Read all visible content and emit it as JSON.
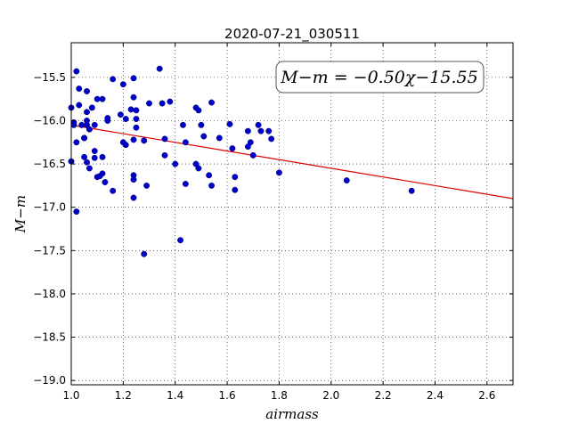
{
  "chart_data": {
    "type": "scatter",
    "title": "2020-07-21_030511",
    "xlabel": "airmass",
    "ylabel": "M−m",
    "annotation": "M−m = −0.50χ−15.55",
    "xlim": [
      1.0,
      2.7
    ],
    "ylim": [
      -19.05,
      -15.1
    ],
    "x_ticks": [
      1.0,
      1.2,
      1.4,
      1.6,
      1.8,
      2.0,
      2.2,
      2.4,
      2.6
    ],
    "x_tick_labels": [
      "1.0",
      "1.2",
      "1.4",
      "1.6",
      "1.8",
      "2.0",
      "2.2",
      "2.4",
      "2.6"
    ],
    "y_ticks": [
      -15.5,
      -16.0,
      -16.5,
      -17.0,
      -17.5,
      -18.0,
      -18.5,
      -19.0
    ],
    "y_tick_labels": [
      "−15.5",
      "−16.0",
      "−16.5",
      "−17.0",
      "−17.5",
      "−18.0",
      "−18.5",
      "−19.0"
    ],
    "grid": true,
    "point_color": "#0000cc",
    "fit_color": "#dd0000",
    "fit": {
      "slope": -0.5,
      "intercept": -15.55
    },
    "points": [
      [
        1.0,
        -15.85
      ],
      [
        1.0,
        -16.47
      ],
      [
        1.01,
        -16.05
      ],
      [
        1.01,
        -16.02
      ],
      [
        1.02,
        -15.43
      ],
      [
        1.02,
        -16.25
      ],
      [
        1.02,
        -17.05
      ],
      [
        1.03,
        -15.63
      ],
      [
        1.03,
        -15.82
      ],
      [
        1.04,
        -16.05
      ],
      [
        1.05,
        -16.2
      ],
      [
        1.05,
        -16.42
      ],
      [
        1.05,
        -16.2
      ],
      [
        1.06,
        -15.66
      ],
      [
        1.06,
        -15.9
      ],
      [
        1.06,
        -16.0
      ],
      [
        1.06,
        -16.05
      ],
      [
        1.06,
        -16.48
      ],
      [
        1.07,
        -16.1
      ],
      [
        1.07,
        -16.55
      ],
      [
        1.08,
        -15.85
      ],
      [
        1.09,
        -16.35
      ],
      [
        1.09,
        -16.43
      ],
      [
        1.09,
        -16.05
      ],
      [
        1.1,
        -16.65
      ],
      [
        1.1,
        -15.75
      ],
      [
        1.11,
        -16.64
      ],
      [
        1.12,
        -16.42
      ],
      [
        1.12,
        -15.75
      ],
      [
        1.12,
        -16.61
      ],
      [
        1.13,
        -16.71
      ],
      [
        1.14,
        -16.0
      ],
      [
        1.14,
        -15.97
      ],
      [
        1.16,
        -15.52
      ],
      [
        1.16,
        -16.81
      ],
      [
        1.19,
        -15.93
      ],
      [
        1.2,
        -16.25
      ],
      [
        1.2,
        -15.58
      ],
      [
        1.21,
        -16.28
      ],
      [
        1.21,
        -15.98
      ],
      [
        1.23,
        -15.87
      ],
      [
        1.24,
        -15.73
      ],
      [
        1.24,
        -16.22
      ],
      [
        1.24,
        -16.68
      ],
      [
        1.24,
        -16.63
      ],
      [
        1.24,
        -16.89
      ],
      [
        1.24,
        -15.51
      ],
      [
        1.25,
        -16.08
      ],
      [
        1.25,
        -15.88
      ],
      [
        1.25,
        -15.98
      ],
      [
        1.28,
        -16.23
      ],
      [
        1.28,
        -17.54
      ],
      [
        1.29,
        -16.75
      ],
      [
        1.3,
        -15.8
      ],
      [
        1.34,
        -15.4
      ],
      [
        1.35,
        -15.8
      ],
      [
        1.36,
        -16.4
      ],
      [
        1.36,
        -16.21
      ],
      [
        1.38,
        -15.78
      ],
      [
        1.4,
        -16.5
      ],
      [
        1.42,
        -17.38
      ],
      [
        1.43,
        -16.05
      ],
      [
        1.44,
        -16.25
      ],
      [
        1.44,
        -16.73
      ],
      [
        1.48,
        -16.5
      ],
      [
        1.48,
        -15.85
      ],
      [
        1.49,
        -15.88
      ],
      [
        1.49,
        -16.55
      ],
      [
        1.5,
        -16.05
      ],
      [
        1.51,
        -16.18
      ],
      [
        1.53,
        -16.63
      ],
      [
        1.54,
        -15.79
      ],
      [
        1.54,
        -16.75
      ],
      [
        1.57,
        -16.2
      ],
      [
        1.61,
        -16.04
      ],
      [
        1.62,
        -16.32
      ],
      [
        1.63,
        -16.65
      ],
      [
        1.63,
        -16.8
      ],
      [
        1.68,
        -16.3
      ],
      [
        1.68,
        -16.12
      ],
      [
        1.69,
        -16.25
      ],
      [
        1.7,
        -16.4
      ],
      [
        1.72,
        -16.05
      ],
      [
        1.73,
        -16.12
      ],
      [
        1.76,
        -16.12
      ],
      [
        1.77,
        -16.21
      ],
      [
        1.8,
        -16.6
      ],
      [
        2.06,
        -16.69
      ],
      [
        2.31,
        -16.81
      ]
    ]
  }
}
